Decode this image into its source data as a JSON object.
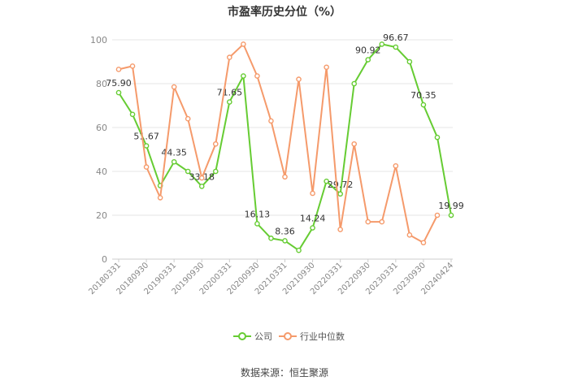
{
  "chart_data": {
    "type": "line",
    "title": "市盈率历史分位（%）",
    "source": "数据来源：恒生聚源",
    "xlabel": "",
    "ylabel": "",
    "ylim": [
      0,
      100
    ],
    "yticks": [
      0,
      20,
      40,
      60,
      80,
      100
    ],
    "grid": true,
    "legend_position": "bottom",
    "x": [
      "20180331",
      "20180630",
      "20180930",
      "20181231",
      "20190331",
      "20190630",
      "20190930",
      "20191231",
      "20200331",
      "20200630",
      "20200930",
      "20201231",
      "20210331",
      "20210630",
      "20210930",
      "20211231",
      "20220331",
      "20220630",
      "20220930",
      "20221231",
      "20230331",
      "20230630",
      "20230930",
      "20231231",
      "20240424"
    ],
    "x_tick_labels": [
      "20180331",
      "20180930",
      "20190331",
      "20190930",
      "20200331",
      "20200930",
      "20210331",
      "20210930",
      "20220331",
      "20220930",
      "20230331",
      "20230930",
      "20240424"
    ],
    "series": [
      {
        "name": "公司",
        "color": "#66cc33",
        "values": [
          75.9,
          66.0,
          51.67,
          33.5,
          44.35,
          40.0,
          33.18,
          40.0,
          71.65,
          83.5,
          16.13,
          9.5,
          8.36,
          4.0,
          14.24,
          35.5,
          29.72,
          80.0,
          90.92,
          98.0,
          96.67,
          90.0,
          70.35,
          55.5,
          19.99
        ],
        "labels": {
          "0": "75.90",
          "2": "51.67",
          "4": "44.35",
          "6": "33.18",
          "8": "71.65",
          "10": "16.13",
          "12": "8.36",
          "14": "14.24",
          "16": "29.72",
          "18": "90.92",
          "20": "96.67",
          "22": "70.35",
          "24": "19.99"
        }
      },
      {
        "name": "行业中位数",
        "color": "#f59a6b",
        "values": [
          86.5,
          88.0,
          42.0,
          28.0,
          78.5,
          64.0,
          37.0,
          52.5,
          92.0,
          98.0,
          83.5,
          63.0,
          37.5,
          82.0,
          30.0,
          87.5,
          13.5,
          52.5,
          17.0,
          17.0,
          42.5,
          11.0,
          7.5,
          20.0,
          null
        ]
      }
    ]
  }
}
